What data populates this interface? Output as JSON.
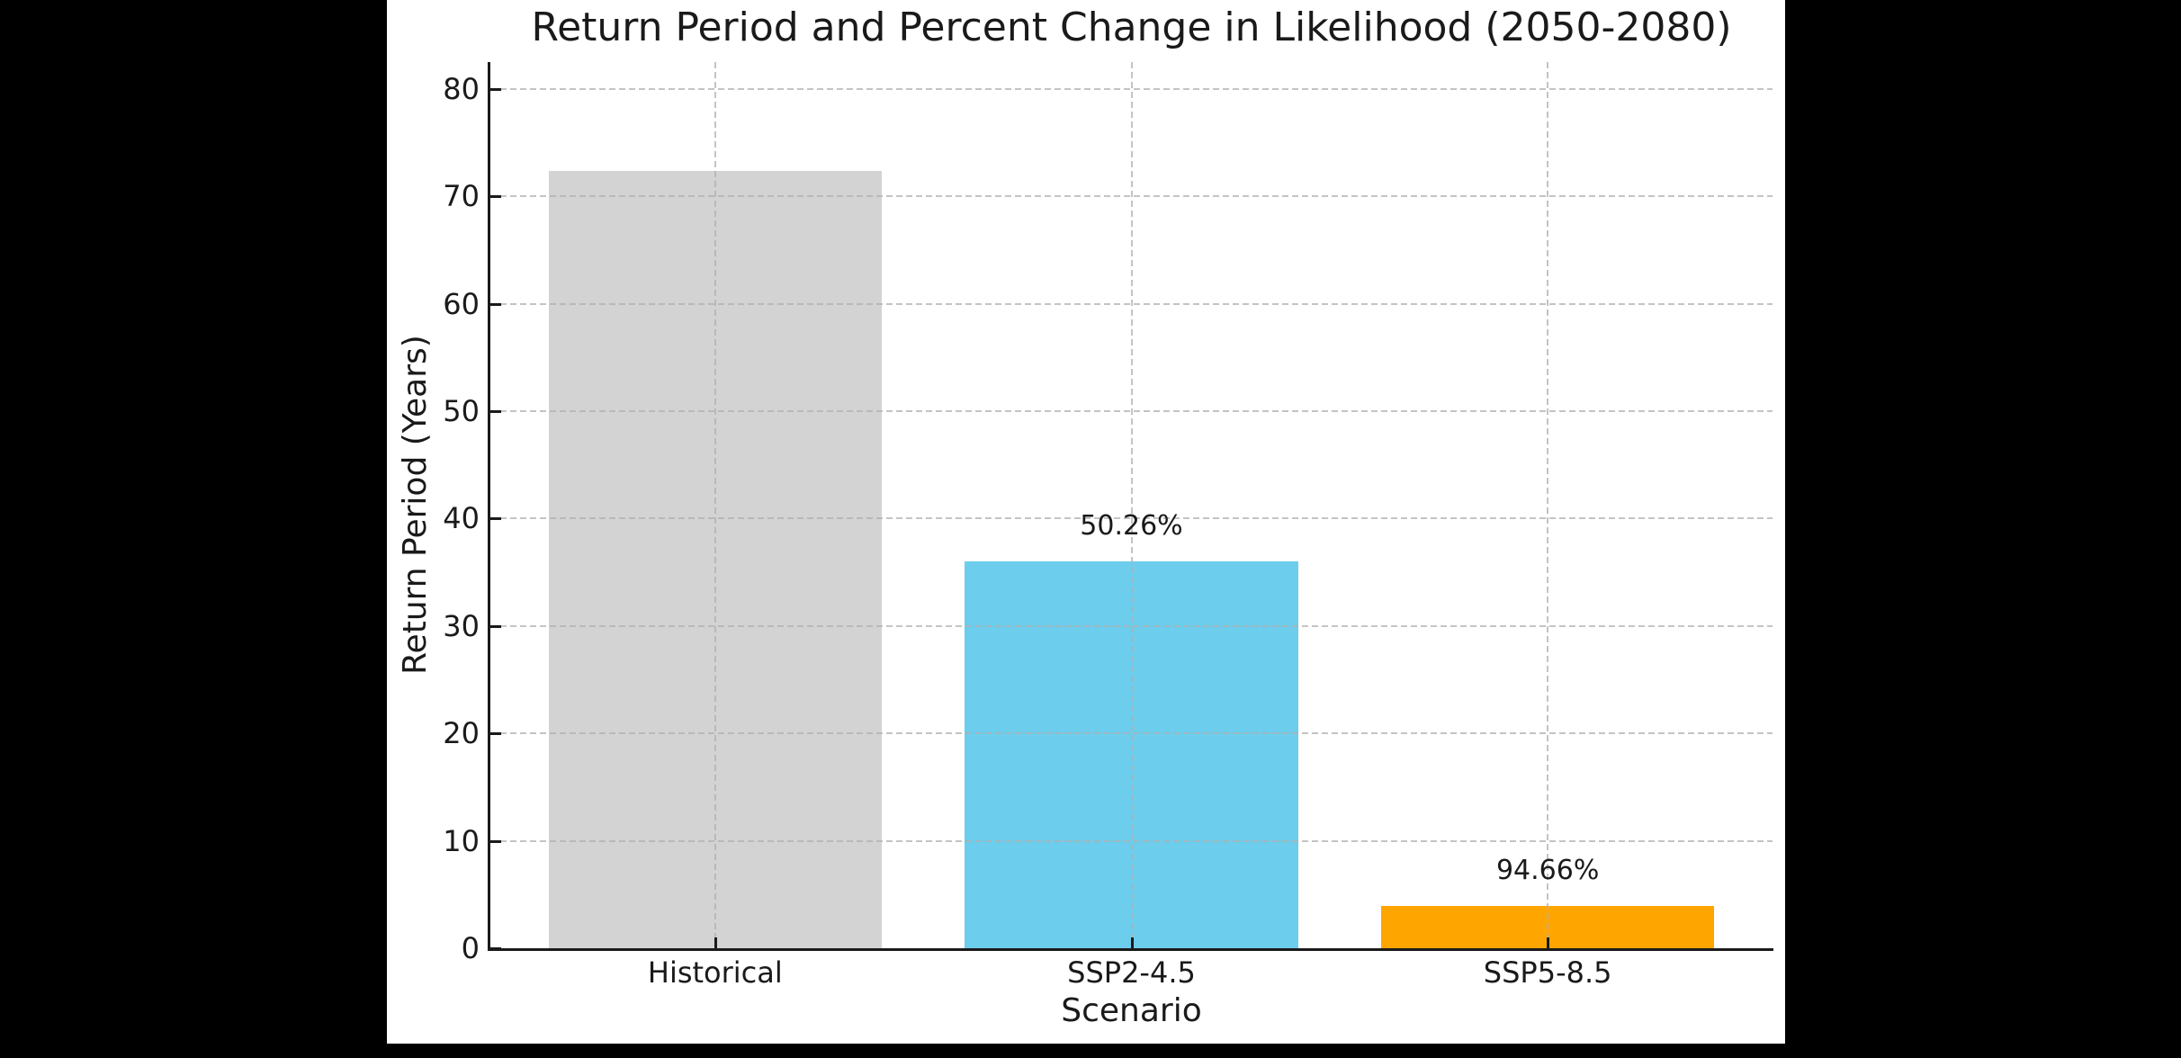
{
  "window": {
    "background": "#000000",
    "figure_background": "#ffffff"
  },
  "chart_data": {
    "type": "bar",
    "title": "Return Period and Percent Change in Likelihood (2050-2080)",
    "xlabel": "Scenario",
    "ylabel": "Return Period (Years)",
    "categories": [
      "Historical",
      "SSP2-4.5",
      "SSP5-8.5"
    ],
    "values": [
      72.4,
      36.0,
      3.9
    ],
    "bar_labels": [
      "",
      "50.26%",
      "94.66%"
    ],
    "bar_colors": [
      "#d3d3d3",
      "#6dcdec",
      "#ffa500"
    ],
    "yticks": [
      0,
      10,
      20,
      30,
      40,
      50,
      60,
      70,
      80
    ],
    "ylim": [
      0,
      82.5
    ],
    "grid": {
      "visible": true,
      "linestyle": "dashed",
      "color": "#b0b0b0",
      "drawn_over_bars": true
    },
    "legend": null,
    "spines": [
      "left",
      "bottom"
    ],
    "tick_direction": "in",
    "text_color": "#1a1a1a"
  }
}
